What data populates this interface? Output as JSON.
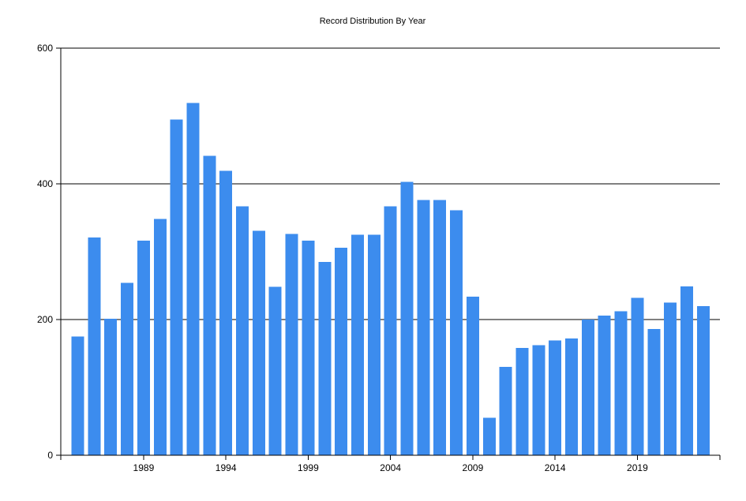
{
  "chart_data": {
    "type": "bar",
    "title": "Record Distribution By Year",
    "xlabel": "",
    "ylabel": "",
    "ylim": [
      0,
      600
    ],
    "yticks": [
      0,
      200,
      400,
      600
    ],
    "xticks": [
      1989,
      1994,
      1999,
      2004,
      2009,
      2014,
      2019
    ],
    "grid": "horizontal",
    "legend": "none",
    "bar_color": "#3C8CEE",
    "categories": [
      1985,
      1986,
      1987,
      1988,
      1989,
      1990,
      1991,
      1992,
      1993,
      1994,
      1995,
      1996,
      1997,
      1998,
      1999,
      2000,
      2001,
      2002,
      2003,
      2004,
      2005,
      2006,
      2007,
      2008,
      2009,
      2010,
      2011,
      2012,
      2013,
      2014,
      2015,
      2016,
      2017,
      2018,
      2019,
      2020,
      2021,
      2022,
      2023
    ],
    "values": [
      175,
      321,
      201,
      254,
      316,
      348,
      495,
      519,
      441,
      419,
      367,
      331,
      248,
      326,
      316,
      285,
      306,
      325,
      325,
      367,
      403,
      376,
      376,
      361,
      234,
      55,
      130,
      158,
      162,
      169,
      172,
      200,
      206,
      212,
      232,
      186,
      225,
      249,
      220
    ]
  }
}
